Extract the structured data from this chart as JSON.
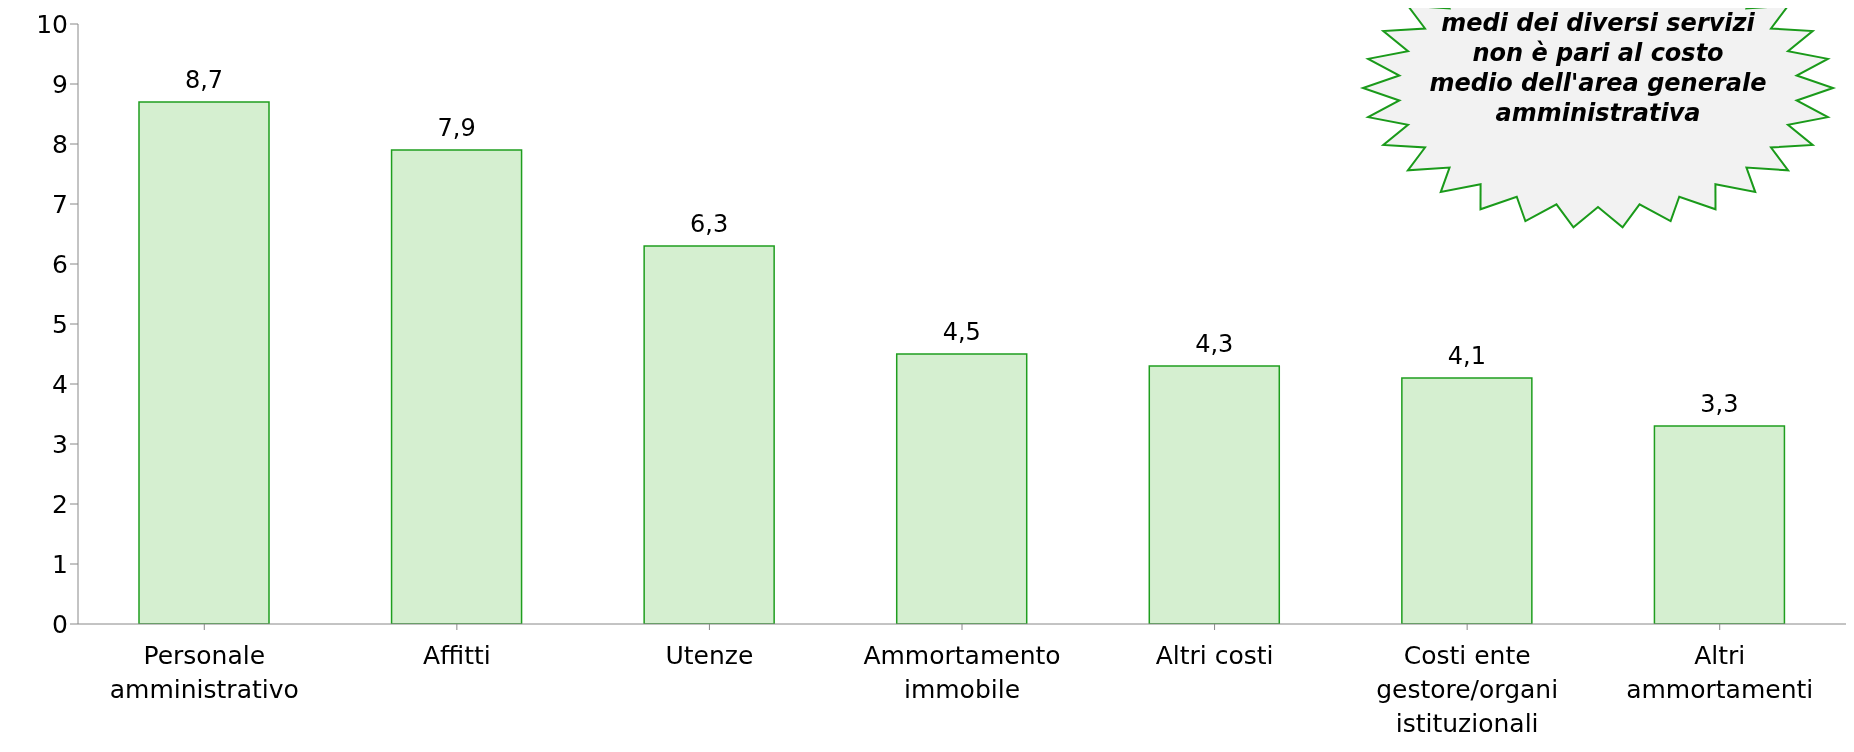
{
  "chart_data": {
    "type": "bar",
    "categories": [
      "Personale amministrativo",
      "Affitti",
      "Utenze",
      "Ammortamento immobile",
      "Altri costi",
      "Costi ente gestore/organi istituzionali",
      "Altri ammortamenti"
    ],
    "values": [
      8.7,
      7.9,
      6.3,
      4.5,
      4.3,
      4.1,
      3.3
    ],
    "color": "#d5efd0",
    "value_labels": [
      "8,7",
      "7,9",
      "6,3",
      "4,5",
      "4,3",
      "4,1",
      "3,3"
    ],
    "ylim": [
      0,
      10
    ],
    "yticks": [
      0,
      1,
      2,
      3,
      4,
      5,
      6,
      7,
      8,
      9,
      10
    ],
    "grid": false,
    "legend": false,
    "annotations": [
      "medi dei diversi servizi non è pari al costo medio dell'area generale amministrativa"
    ]
  }
}
